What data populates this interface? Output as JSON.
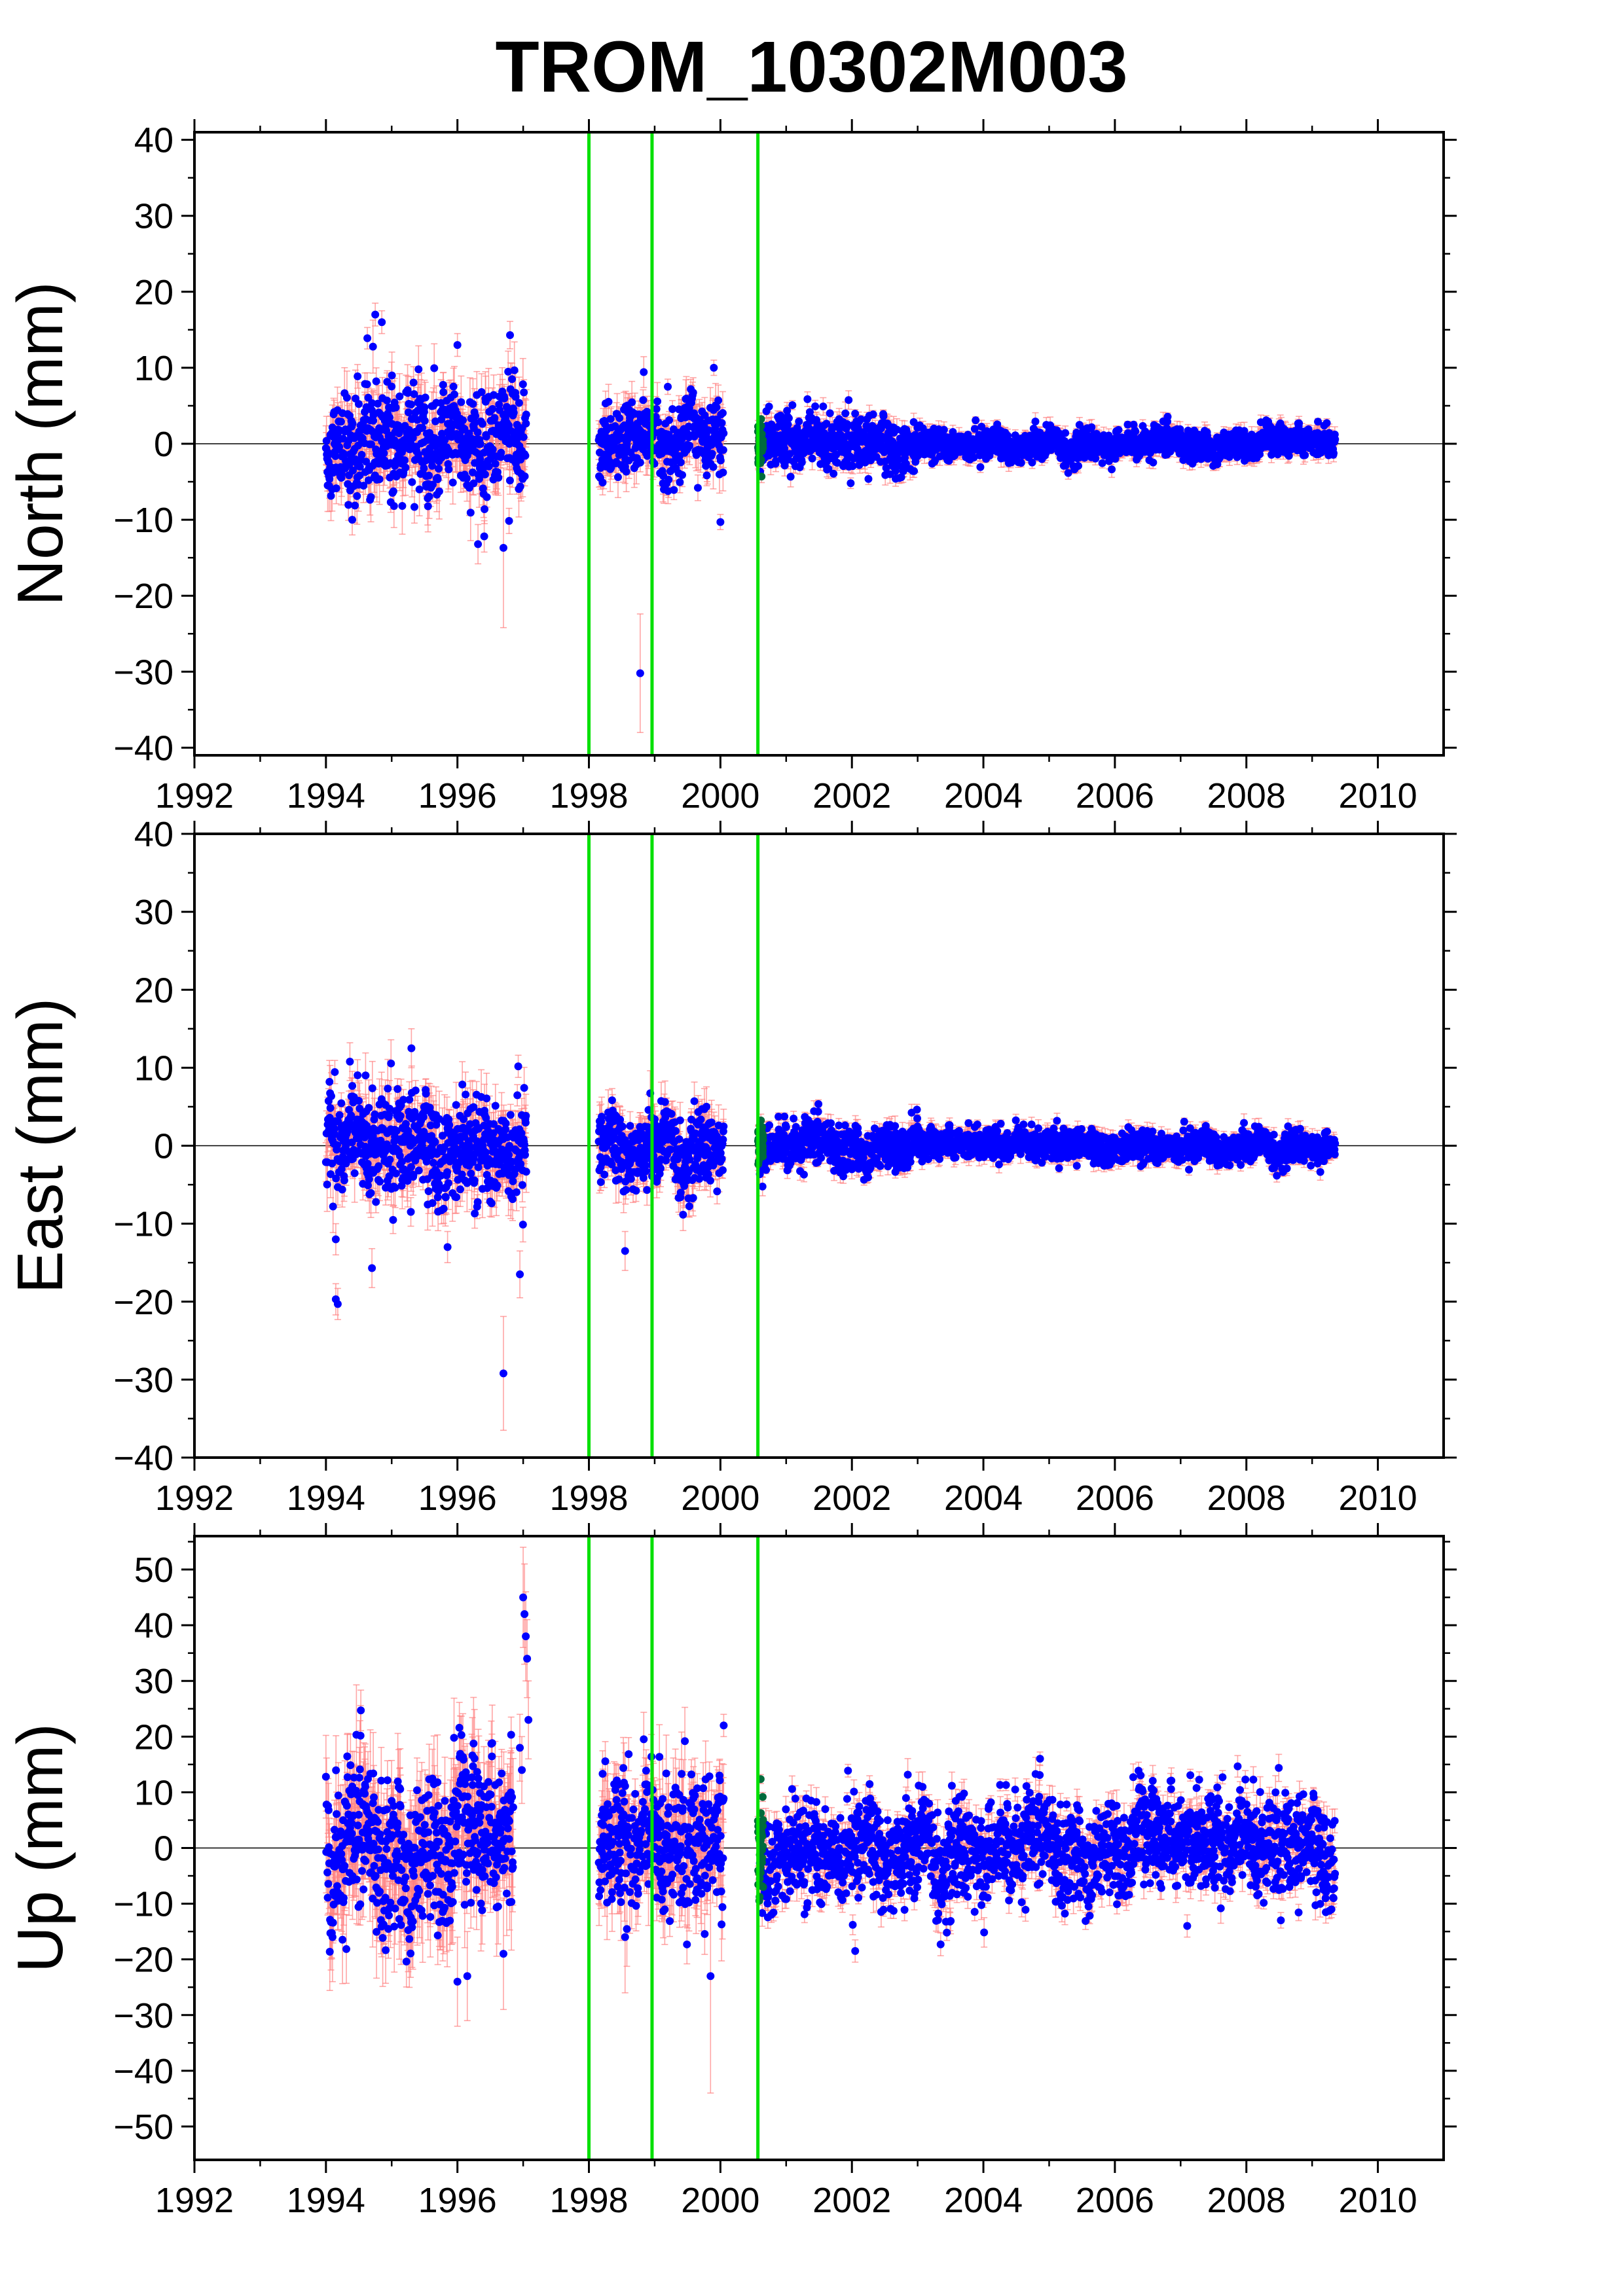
{
  "title": "TROM_10302M003",
  "colors": {
    "points": "#0000ff",
    "errorbars": "#ff8080",
    "offsets": "#00e000",
    "overlap": "#006b3c",
    "zero_line": "#000000",
    "frame": "#000000"
  },
  "chart_data": [
    {
      "type": "scatter",
      "ylabel": "North (mm)",
      "xlim": [
        1992,
        2011
      ],
      "ylim": [
        -41,
        41
      ],
      "xticks": [
        1992,
        1994,
        1996,
        1998,
        2000,
        2002,
        2004,
        2006,
        2008,
        2010
      ],
      "xtick_labels": [
        "1992",
        "1994",
        "1996",
        "1998",
        "2000",
        "2002",
        "2004",
        "2006",
        "2008",
        "2010"
      ],
      "yticks": [
        -40,
        -30,
        -20,
        -10,
        0,
        10,
        20,
        30,
        40
      ],
      "ytick_labels": [
        "−40",
        "−30",
        "−20",
        "−10",
        "0",
        "10",
        "20",
        "30",
        "40"
      ],
      "offset_lines": [
        1998.0,
        1998.96,
        2000.57
      ],
      "zero_line": 0,
      "segments": [
        {
          "start": 1994.0,
          "end": 1997.05,
          "sigma": 3.5,
          "err": 2.5
        },
        {
          "start": 1998.15,
          "end": 2000.05,
          "sigma": 2.3,
          "err": 2.0
        },
        {
          "start": 2000.6,
          "end": 2003.0,
          "sigma": 1.8,
          "err": 1.0
        },
        {
          "start": 2003.0,
          "end": 2009.35,
          "sigma": 1.0,
          "err": 0.8
        }
      ],
      "outliers": [
        {
          "x": 1998.78,
          "y": -30.2,
          "err": 7.8
        },
        {
          "x": 1996.7,
          "y": -13.7,
          "err": 10.5
        },
        {
          "x": 1994.75,
          "y": 17.0,
          "err": 1.5
        },
        {
          "x": 1994.85,
          "y": 16.0,
          "err": 1.5
        },
        {
          "x": 1996.8,
          "y": 14.3,
          "err": 1.8
        },
        {
          "x": 1996.0,
          "y": 13.0,
          "err": 1.5
        },
        {
          "x": 1999.9,
          "y": 10.0,
          "err": 1.0
        },
        {
          "x": 2000.0,
          "y": -10.3,
          "err": 1.0
        },
        {
          "x": 1999.2,
          "y": 7.5,
          "err": 1.0
        },
        {
          "x": 1994.4,
          "y": -10.0,
          "err": 2.0
        }
      ]
    },
    {
      "type": "scatter",
      "ylabel": "East (mm)",
      "xlim": [
        1992,
        2011
      ],
      "ylim": [
        -40,
        40
      ],
      "xticks": [
        1992,
        1994,
        1996,
        1998,
        2000,
        2002,
        2004,
        2006,
        2008,
        2010
      ],
      "xtick_labels": [
        "1992",
        "1994",
        "1996",
        "1998",
        "2000",
        "2002",
        "2004",
        "2006",
        "2008",
        "2010"
      ],
      "yticks": [
        -40,
        -30,
        -20,
        -10,
        0,
        10,
        20,
        30,
        40
      ],
      "ytick_labels": [
        "−40",
        "−30",
        "−20",
        "−10",
        "0",
        "10",
        "20",
        "30",
        "40"
      ],
      "offset_lines": [
        1998.0,
        1998.96,
        2000.57
      ],
      "zero_line": 0,
      "segments": [
        {
          "start": 1994.0,
          "end": 1997.05,
          "sigma": 3.3,
          "err": 2.5
        },
        {
          "start": 1998.15,
          "end": 2000.05,
          "sigma": 2.3,
          "err": 2.0
        },
        {
          "start": 2000.6,
          "end": 2003.0,
          "sigma": 1.5,
          "err": 0.9
        },
        {
          "start": 2003.0,
          "end": 2009.35,
          "sigma": 1.0,
          "err": 0.8
        }
      ],
      "outliers": [
        {
          "x": 1996.7,
          "y": -29.2,
          "err": 7.3
        },
        {
          "x": 1994.15,
          "y": -19.7,
          "err": 2.0
        },
        {
          "x": 1994.18,
          "y": -20.3,
          "err": 2.0
        },
        {
          "x": 1996.95,
          "y": -16.5,
          "err": 3.0
        },
        {
          "x": 1994.7,
          "y": -15.7,
          "err": 2.5
        },
        {
          "x": 1995.85,
          "y": -13.0,
          "err": 2.0
        },
        {
          "x": 1998.55,
          "y": -13.5,
          "err": 2.5
        },
        {
          "x": 1995.3,
          "y": 12.5,
          "err": 2.5
        },
        {
          "x": 1994.15,
          "y": -12.0,
          "err": 2.0
        }
      ]
    },
    {
      "type": "scatter",
      "ylabel": "Up (mm)",
      "xlim": [
        1992,
        2011
      ],
      "ylim": [
        -56,
        56
      ],
      "xticks": [
        1992,
        1994,
        1996,
        1998,
        2000,
        2002,
        2004,
        2006,
        2008,
        2010
      ],
      "xtick_labels": [
        "1992",
        "1994",
        "1996",
        "1998",
        "2000",
        "2002",
        "2004",
        "2006",
        "2008",
        "2010"
      ],
      "yticks": [
        -50,
        -40,
        -30,
        -20,
        -10,
        0,
        10,
        20,
        30,
        40,
        50
      ],
      "ytick_labels": [
        "−50",
        "−40",
        "−30",
        "−20",
        "−10",
        "0",
        "10",
        "20",
        "30",
        "40",
        "50"
      ],
      "offset_lines": [
        1998.0,
        1998.96,
        2000.57
      ],
      "zero_line": 0,
      "segments": [
        {
          "start": 1994.0,
          "end": 1996.85,
          "sigma": 7.0,
          "err": 6.0
        },
        {
          "start": 1998.15,
          "end": 2000.05,
          "sigma": 6.0,
          "err": 5.0
        },
        {
          "start": 2000.6,
          "end": 2009.35,
          "sigma": 4.5,
          "err": 2.0
        }
      ],
      "outliers": [
        {
          "x": 1997.0,
          "y": 45.0,
          "err": 9.0
        },
        {
          "x": 1997.02,
          "y": 42.0,
          "err": 9.0
        },
        {
          "x": 1997.04,
          "y": 38.0,
          "err": 8.0
        },
        {
          "x": 1997.06,
          "y": 34.0,
          "err": 7.0
        },
        {
          "x": 1997.08,
          "y": 23.0,
          "err": 7.0
        },
        {
          "x": 1996.95,
          "y": 18.0,
          "err": 6.0
        },
        {
          "x": 1996.98,
          "y": 14.0,
          "err": 6.0
        },
        {
          "x": 2000.05,
          "y": 22.0,
          "err": 2.0
        },
        {
          "x": 1999.85,
          "y": -23.0,
          "err": 21.0
        },
        {
          "x": 1996.0,
          "y": -24.0,
          "err": 8.0
        },
        {
          "x": 1996.15,
          "y": -23.0,
          "err": 8.0
        },
        {
          "x": 1996.7,
          "y": -19.0,
          "err": 10.0
        },
        {
          "x": 2002.05,
          "y": -18.5,
          "err": 2.0
        },
        {
          "x": 2007.1,
          "y": -14.0,
          "err": 2.0
        },
        {
          "x": 1994.1,
          "y": -16.0,
          "err": 8.0
        },
        {
          "x": 1998.55,
          "y": -16.0,
          "err": 10.0
        }
      ]
    }
  ]
}
